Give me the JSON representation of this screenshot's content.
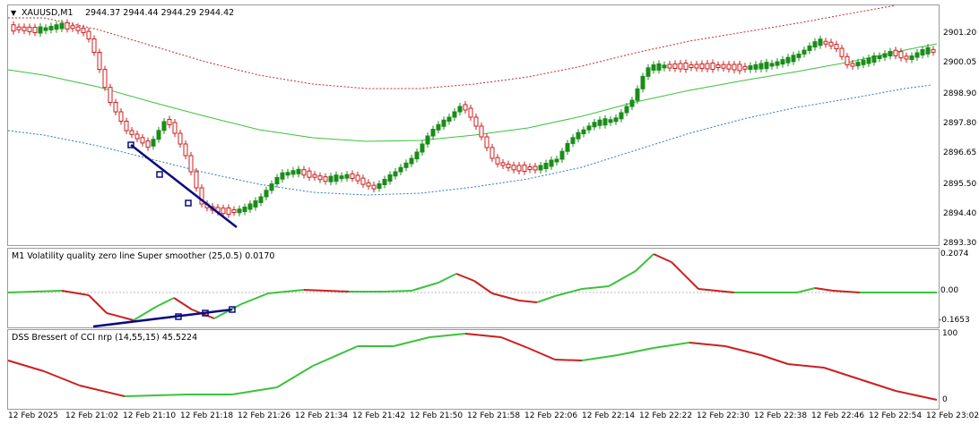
{
  "main": {
    "title": "XAUUSD,M1",
    "ohlc": "2944.37 2944.44 2944.29 2944.42",
    "price_ticks": [
      "2901.20",
      "2900.05",
      "2898.90",
      "2897.80",
      "2896.65",
      "2895.50",
      "2894.40",
      "2893.30"
    ]
  },
  "ind1": {
    "title": "M1 Volatility quality zero line Super smoother (25,0.5) 0.0170",
    "ticks": [
      "0.2074",
      "0.00",
      "-0.1653"
    ]
  },
  "ind2": {
    "title": "DSS Bressert of CCI nrp (14,55,15) 45.5224",
    "ticks": [
      "100",
      "0"
    ]
  },
  "time_axis": [
    "12 Feb 2025",
    "12 Feb 21:02",
    "12 Feb 21:10",
    "12 Feb 21:18",
    "12 Feb 21:26",
    "12 Feb 21:34",
    "12 Feb 21:42",
    "12 Feb 21:50",
    "12 Feb 21:58",
    "12 Feb 22:06",
    "12 Feb 22:14",
    "12 Feb 22:22",
    "12 Feb 22:30",
    "12 Feb 22:38",
    "12 Feb 22:46",
    "12 Feb 22:54",
    "12 Feb 23:02"
  ],
  "colors": {
    "bull": "#1a8c1a",
    "bear": "#cc1f1f",
    "ma": "#3cc23c",
    "upper_band": "#c02a2a",
    "lower_band": "#2a7ac0",
    "trendline": "#0a0a80"
  }
}
